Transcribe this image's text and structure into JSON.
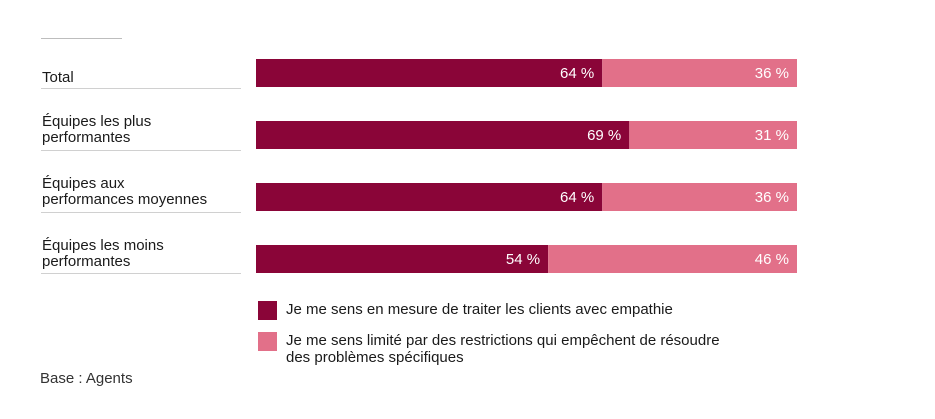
{
  "chart_data": {
    "type": "bar",
    "orientation": "horizontal",
    "stacked": true,
    "categories": [
      "Total",
      "Équipes les plus performantes",
      "Équipes aux performances moyennes",
      "Équipes les moins performantes"
    ],
    "series": [
      {
        "name": "Je me sens en mesure de traiter les clients avec empathie",
        "values": [
          64,
          69,
          64,
          54
        ],
        "labels": [
          "64 %",
          "69 %",
          "64 %",
          "54 %"
        ],
        "color": "#8a0538"
      },
      {
        "name": "Je me sens limité par des restrictions qui empêchent de résoudre des problèmes spécifiques",
        "values": [
          36,
          31,
          36,
          46
        ],
        "labels": [
          "36 %",
          "31 %",
          "36 %",
          "46 %"
        ],
        "color": "#e27089"
      }
    ],
    "xlim": [
      0,
      100
    ],
    "legend_position": "bottom",
    "note": "Base : Agents"
  },
  "row_labels": {
    "r0": "Total",
    "r1a": "Équipes les plus",
    "r1b": "performantes",
    "r2a": "Équipes aux",
    "r2b": "performances moyennes",
    "r3a": "Équipes les moins",
    "r3b": "performantes"
  },
  "legend": {
    "item1": "Je me sens en mesure de traiter les clients avec empathie",
    "item2a": "Je me sens limité par des restrictions qui empêchent de résoudre",
    "item2b": "des problèmes spécifiques"
  }
}
